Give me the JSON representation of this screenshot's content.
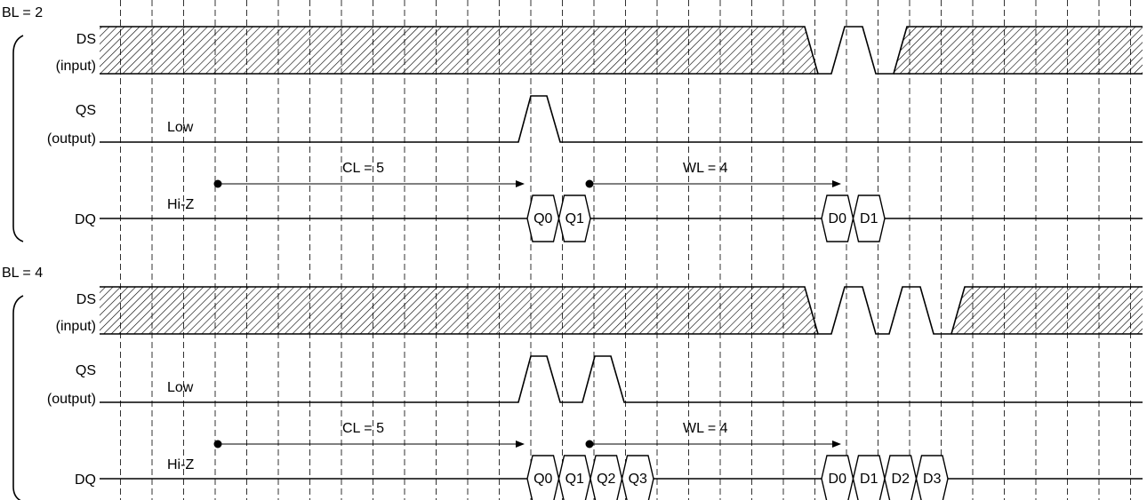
{
  "panels": [
    {
      "title": "BL = 2",
      "ds_label": "DS",
      "ds_sub": "(input)",
      "qs_label": "QS",
      "qs_sub": "(output)",
      "qs_level": "Low",
      "dq_label": "DQ",
      "dq_level": "Hi-Z",
      "cl": "CL = 5",
      "wl": "WL = 4",
      "read_cells": [
        "Q0",
        "Q1"
      ],
      "write_cells": [
        "D0",
        "D1"
      ]
    },
    {
      "title": "BL = 4",
      "ds_label": "DS",
      "ds_sub": "(input)",
      "qs_label": "QS",
      "qs_sub": "(output)",
      "qs_level": "Low",
      "dq_label": "DQ",
      "dq_level": "Hi-Z",
      "cl": "CL = 5",
      "wl": "WL = 4",
      "read_cells": [
        "Q0",
        "Q1",
        "Q2",
        "Q3"
      ],
      "write_cells": [
        "D0",
        "D1",
        "D2",
        "D3"
      ]
    }
  ]
}
